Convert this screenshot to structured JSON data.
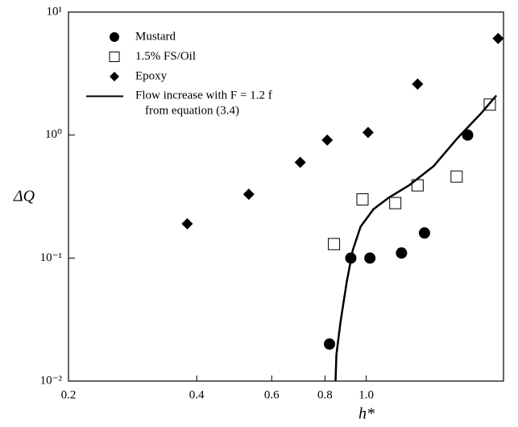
{
  "chart_data": {
    "type": "scatter",
    "x_label": "h*",
    "y_label": "ΔQ",
    "xscale": "log",
    "yscale": "log",
    "xlim": [
      0.2,
      2.1
    ],
    "ylim": [
      0.01,
      10
    ],
    "xticks": [
      0.2,
      0.4,
      0.6,
      0.8,
      {
        "value": 1,
        "label": "1.0"
      }
    ],
    "yticks": [
      {
        "value": 0.01,
        "label": "10⁻²"
      },
      {
        "value": 0.1,
        "label": "10⁻¹"
      },
      {
        "value": 1,
        "label": "10⁰"
      },
      {
        "value": 10,
        "label": "10¹"
      }
    ],
    "legend": "upper left",
    "series": [
      {
        "name": "Mustard",
        "marker": "circle",
        "color": "#000000",
        "x": [
          0.82,
          0.92,
          1.02,
          1.21,
          1.37,
          1.73
        ],
        "values": [
          0.02,
          0.1,
          0.1,
          0.11,
          0.16,
          1.0
        ]
      },
      {
        "name": "1.5% FS/Oil",
        "marker": "square",
        "color": "#000000",
        "x": [
          0.84,
          0.98,
          1.17,
          1.32,
          1.63,
          1.95
        ],
        "values": [
          0.13,
          0.3,
          0.28,
          0.39,
          0.46,
          1.77
        ]
      },
      {
        "name": "Epoxy",
        "marker": "diamond",
        "color": "#000000",
        "x": [
          0.38,
          0.53,
          0.7,
          0.81,
          1.01,
          1.32,
          2.04
        ],
        "values": [
          0.19,
          0.33,
          0.6,
          0.91,
          1.05,
          2.6,
          6.1
        ]
      },
      {
        "name": "Flow increase with F = 1.2 f\nfrom equation (3.4)",
        "marker": "line",
        "color": "#000000",
        "x": [
          0.847,
          0.851,
          0.87,
          0.9,
          0.93,
          0.97,
          1.04,
          1.13,
          1.26,
          1.44,
          1.64,
          1.86,
          2.02
        ],
        "values": [
          0.01,
          0.0164,
          0.03,
          0.064,
          0.116,
          0.18,
          0.25,
          0.31,
          0.39,
          0.56,
          0.95,
          1.5,
          2.1
        ]
      }
    ]
  }
}
